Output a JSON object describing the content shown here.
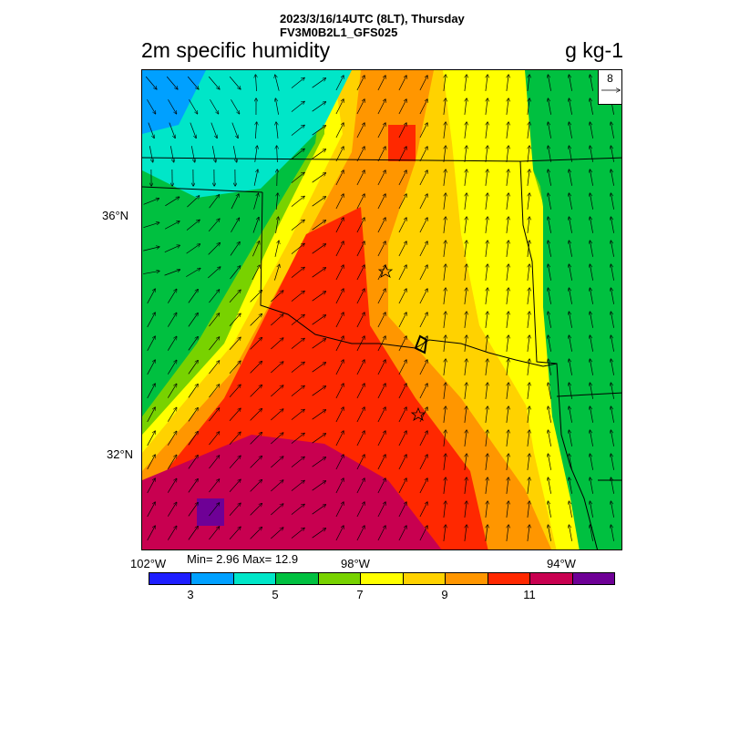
{
  "header": {
    "line1": "2023/3/16/14UTC (8LT), Thursday",
    "line2": "FV3M0B2L1_GFS025"
  },
  "title": "2m specific humidity",
  "units": "g kg-1",
  "lat_labels": [
    "36°N",
    "32°N"
  ],
  "lon_labels": [
    "102°W",
    "98°W",
    "94°W"
  ],
  "stats": "Min= 2.96 Max= 12.9",
  "reference_vector": "8",
  "colorbar": {
    "colors": [
      "#1e1eff",
      "#00a0ff",
      "#00e6c8",
      "#00c040",
      "#78d200",
      "#ffff00",
      "#ffd200",
      "#ff9600",
      "#ff2800",
      "#c80050",
      "#6e0096"
    ],
    "labels": [
      "3",
      "5",
      "7",
      "9",
      "11"
    ]
  },
  "markers": [
    "star",
    "star"
  ]
}
